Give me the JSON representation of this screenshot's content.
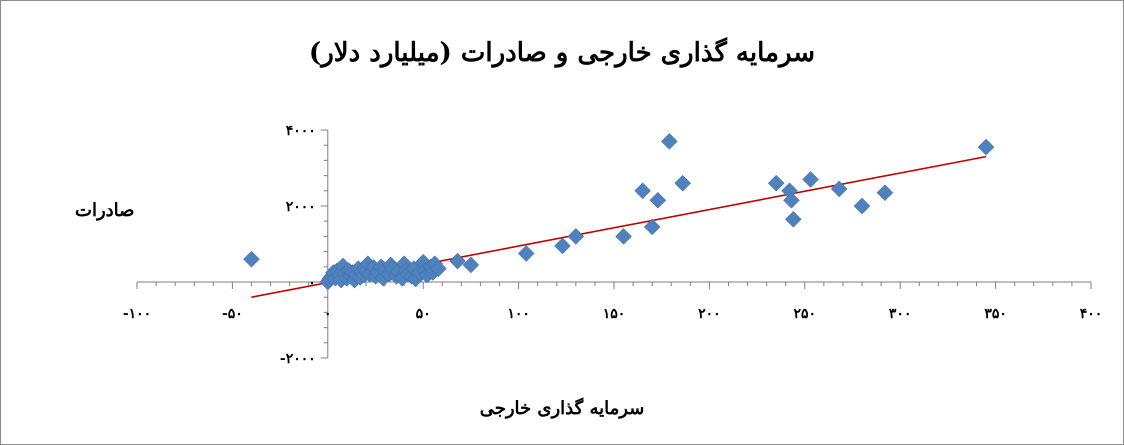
{
  "chart_data": {
    "type": "scatter",
    "title": "سرمایه گذاری خارجی و صادرات (میلیارد دلار)",
    "xlabel": "سرمایه گذاری خارجی",
    "ylabel": "صادرات",
    "xlim": [
      -100,
      400
    ],
    "ylim": [
      -2000,
      4000
    ],
    "x_ticks": [
      -100,
      -50,
      0,
      50,
      100,
      150,
      200,
      250,
      300,
      350,
      400
    ],
    "x_tick_labels": [
      "-۱۰۰",
      "-۵۰",
      "۰",
      "۵۰",
      "۱۰۰",
      "۱۵۰",
      "۲۰۰",
      "۲۵۰",
      "۳۰۰",
      "۳۵۰",
      "۴۰۰"
    ],
    "y_ticks": [
      -2000,
      0,
      2000,
      4000
    ],
    "y_tick_labels": [
      "-۲۰۰۰",
      "۰",
      "۲۰۰۰",
      "۴۰۰۰"
    ],
    "marker_color": "#4F81BD",
    "trendline_color": "#C00000",
    "trendline": {
      "x": [
        -40,
        345
      ],
      "y": [
        -400,
        3300
      ]
    },
    "points": [
      {
        "x": -40,
        "y": 600
      },
      {
        "x": 0,
        "y": 0
      },
      {
        "x": 1,
        "y": 80
      },
      {
        "x": 2,
        "y": 150
      },
      {
        "x": 3,
        "y": 250
      },
      {
        "x": 4,
        "y": 100
      },
      {
        "x": 5,
        "y": 300
      },
      {
        "x": 6,
        "y": 180
      },
      {
        "x": 7,
        "y": 50
      },
      {
        "x": 8,
        "y": 420
      },
      {
        "x": 9,
        "y": 220
      },
      {
        "x": 10,
        "y": 100
      },
      {
        "x": 11,
        "y": 300
      },
      {
        "x": 12,
        "y": 150
      },
      {
        "x": 13,
        "y": 250
      },
      {
        "x": 14,
        "y": 50
      },
      {
        "x": 15,
        "y": 200
      },
      {
        "x": 16,
        "y": 350
      },
      {
        "x": 17,
        "y": 120
      },
      {
        "x": 18,
        "y": 280
      },
      {
        "x": 19,
        "y": 180
      },
      {
        "x": 20,
        "y": 300
      },
      {
        "x": 21,
        "y": 480
      },
      {
        "x": 22,
        "y": 200
      },
      {
        "x": 24,
        "y": 380
      },
      {
        "x": 25,
        "y": 150
      },
      {
        "x": 26,
        "y": 250
      },
      {
        "x": 28,
        "y": 400
      },
      {
        "x": 29,
        "y": 100
      },
      {
        "x": 30,
        "y": 300
      },
      {
        "x": 32,
        "y": 200
      },
      {
        "x": 33,
        "y": 450
      },
      {
        "x": 34,
        "y": 350
      },
      {
        "x": 36,
        "y": 150
      },
      {
        "x": 37,
        "y": 280
      },
      {
        "x": 39,
        "y": 100
      },
      {
        "x": 40,
        "y": 480
      },
      {
        "x": 41,
        "y": 300
      },
      {
        "x": 42,
        "y": 200
      },
      {
        "x": 44,
        "y": 150
      },
      {
        "x": 45,
        "y": 350
      },
      {
        "x": 46,
        "y": 80
      },
      {
        "x": 48,
        "y": 250
      },
      {
        "x": 50,
        "y": 520
      },
      {
        "x": 51,
        "y": 300
      },
      {
        "x": 52,
        "y": 180
      },
      {
        "x": 54,
        "y": 400
      },
      {
        "x": 55,
        "y": 250
      },
      {
        "x": 56,
        "y": 480
      },
      {
        "x": 58,
        "y": 350
      },
      {
        "x": 68,
        "y": 550
      },
      {
        "x": 75,
        "y": 450
      },
      {
        "x": 104,
        "y": 750
      },
      {
        "x": 123,
        "y": 950
      },
      {
        "x": 130,
        "y": 1200
      },
      {
        "x": 155,
        "y": 1200
      },
      {
        "x": 165,
        "y": 2400
      },
      {
        "x": 170,
        "y": 1450
      },
      {
        "x": 173,
        "y": 2150
      },
      {
        "x": 179,
        "y": 3700
      },
      {
        "x": 186,
        "y": 2600
      },
      {
        "x": 235,
        "y": 2600
      },
      {
        "x": 242,
        "y": 2400
      },
      {
        "x": 243,
        "y": 2150
      },
      {
        "x": 244,
        "y": 1650
      },
      {
        "x": 253,
        "y": 2700
      },
      {
        "x": 268,
        "y": 2450
      },
      {
        "x": 280,
        "y": 2000
      },
      {
        "x": 292,
        "y": 2350
      },
      {
        "x": 345,
        "y": 3550
      }
    ]
  }
}
